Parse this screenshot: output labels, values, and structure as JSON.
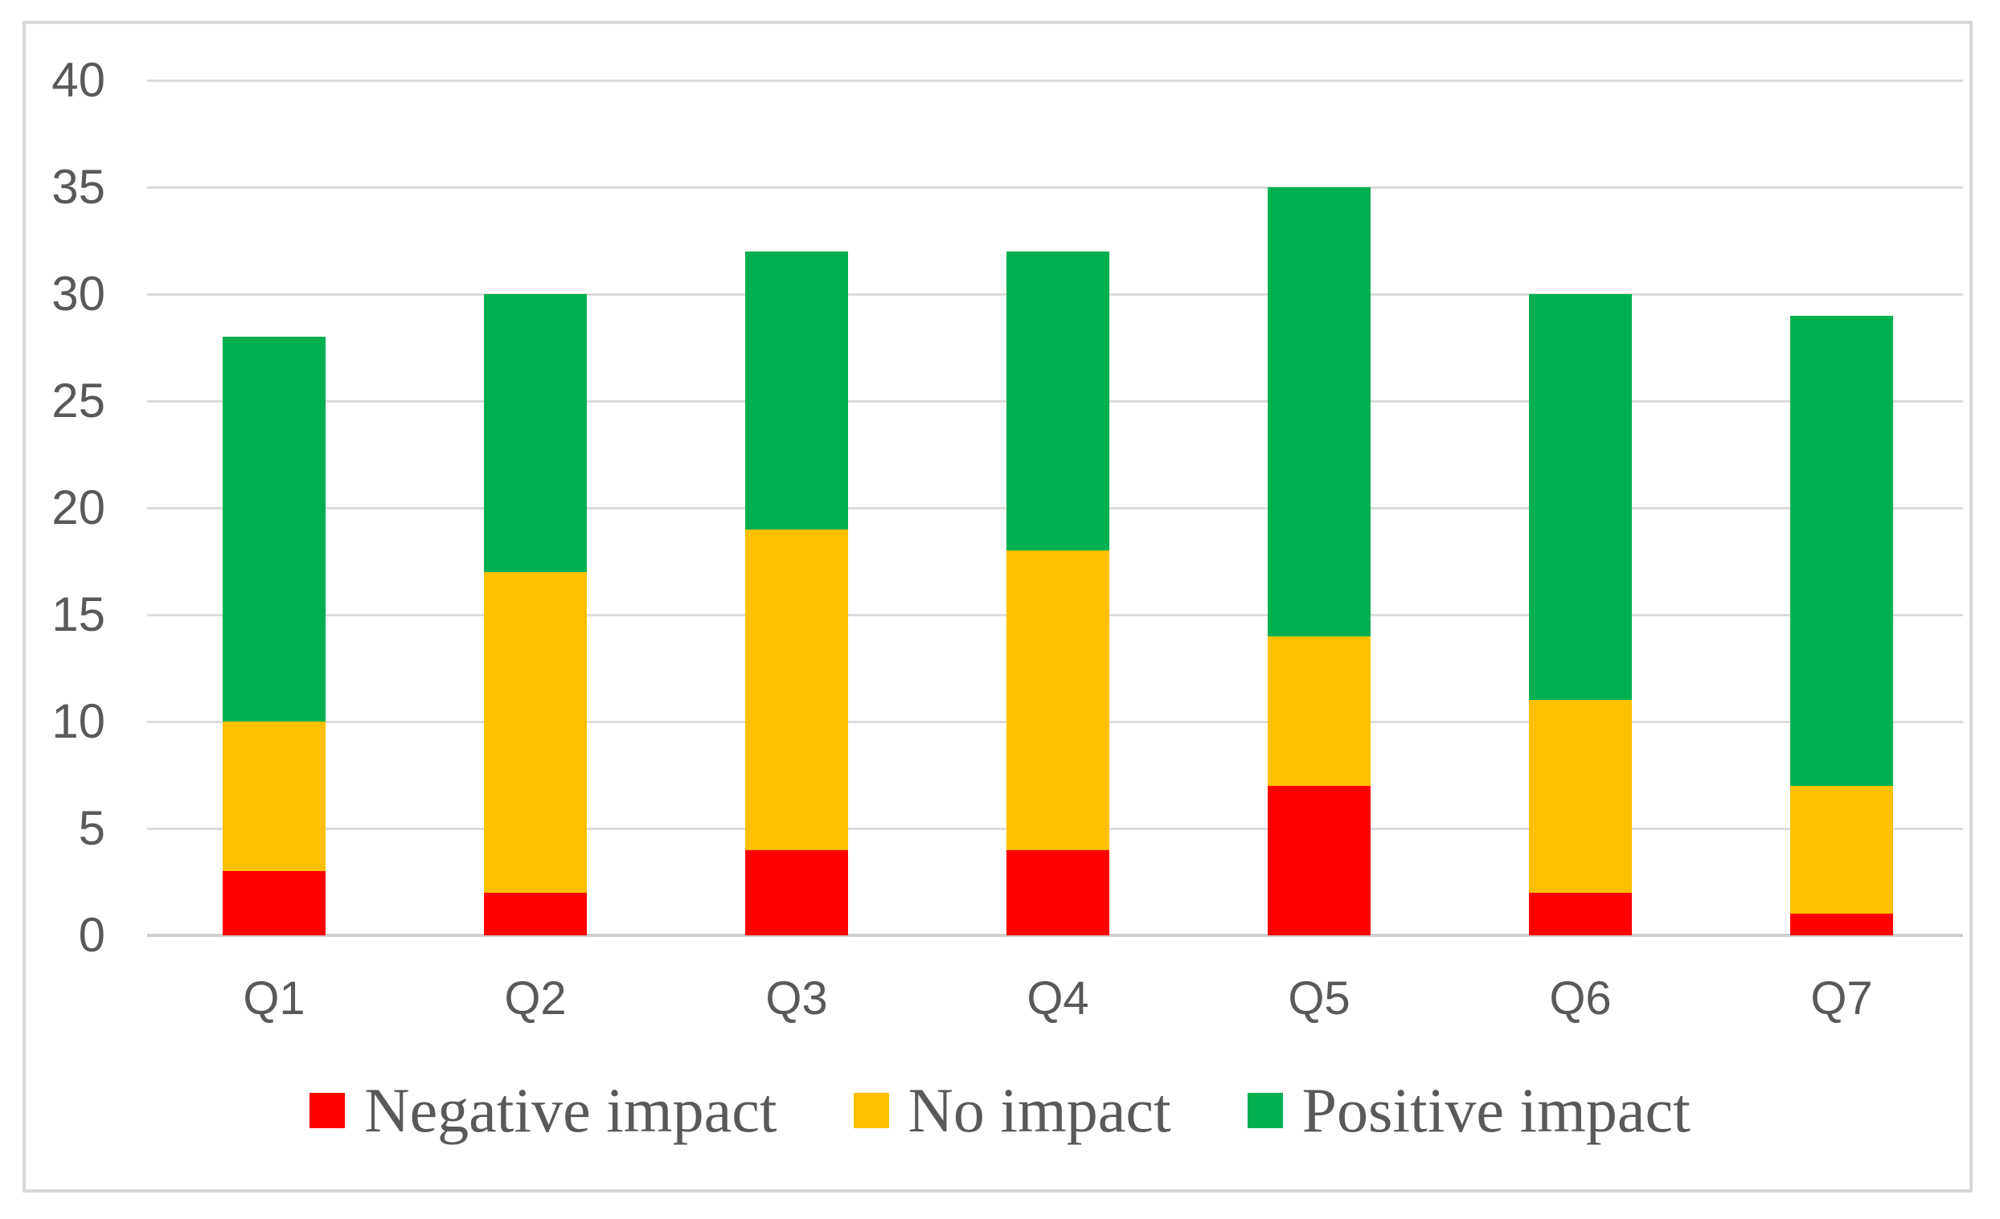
{
  "chart_data": {
    "type": "bar",
    "stacked": true,
    "title": "",
    "xlabel": "",
    "ylabel": "",
    "categories": [
      "Q1",
      "Q2",
      "Q3",
      "Q4",
      "Q5",
      "Q6",
      "Q7"
    ],
    "series": [
      {
        "name": "Negative impact",
        "color": "#FF0000",
        "values": [
          3,
          2,
          4,
          4,
          7,
          2,
          1
        ]
      },
      {
        "name": "No impact",
        "color": "#FFC000",
        "values": [
          7,
          15,
          15,
          14,
          7,
          9,
          6
        ]
      },
      {
        "name": "Positive impact",
        "color": "#00B050",
        "values": [
          18,
          13,
          13,
          14,
          21,
          19,
          22
        ]
      }
    ],
    "stack_totals": [
      28,
      30,
      32,
      32,
      35,
      30,
      29
    ],
    "ylim": [
      0,
      40
    ],
    "ytick_step": 5,
    "ytick_labels": [
      "0",
      "5",
      "10",
      "15",
      "20",
      "25",
      "30",
      "35",
      "40"
    ],
    "grid": true,
    "legend_position": "bottom"
  },
  "colors": {
    "background": "#FFFFFF",
    "border": "#D7D7D7",
    "gridline": "#DBDBDB",
    "axis_line": "#CFCFCF",
    "label_text": "#595959"
  }
}
